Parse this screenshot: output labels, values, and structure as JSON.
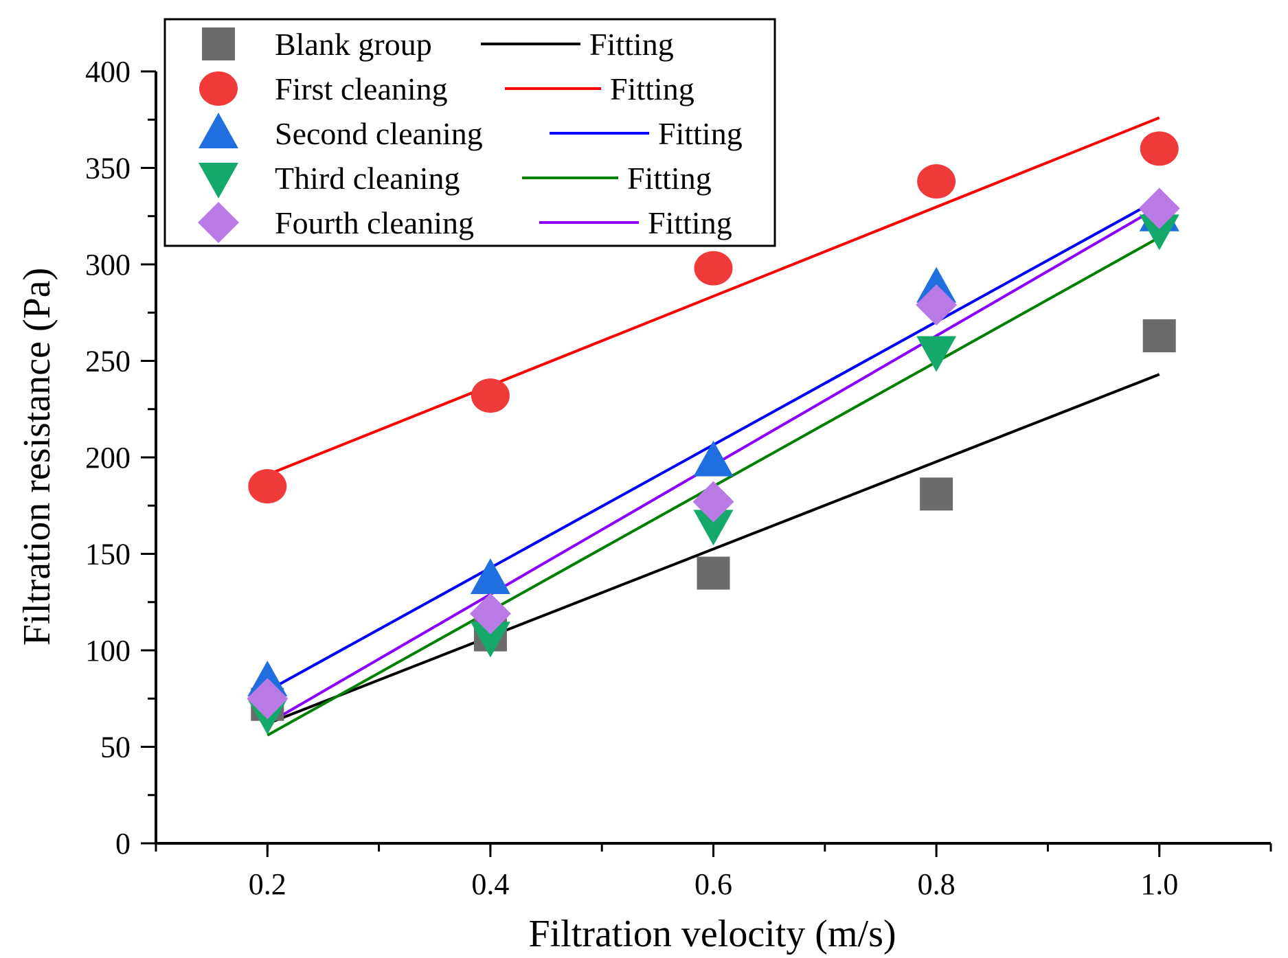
{
  "chart_data": {
    "type": "scatter",
    "title": "",
    "xlabel": "Filtration velocity (m/s)",
    "ylabel": "Filtration resistance (Pa)",
    "xlim": [
      0.1,
      1.1
    ],
    "ylim": [
      0,
      400
    ],
    "x_ticks": [
      0.2,
      0.4,
      0.6,
      0.8,
      1.0
    ],
    "x_tick_labels": [
      "0.2",
      "0.4",
      "0.6",
      "0.8",
      "1.0"
    ],
    "y_ticks": [
      0,
      50,
      100,
      150,
      200,
      250,
      300,
      350,
      400
    ],
    "y_tick_labels": [
      "0",
      "50",
      "100",
      "150",
      "200",
      "250",
      "300",
      "350",
      "400"
    ],
    "grid": false,
    "legend_position": "top-left",
    "fit_label": "Fitting",
    "series": [
      {
        "name": "Blank group",
        "marker": "square",
        "color": "#6b6b6b",
        "line_color": "#000000",
        "x": [
          0.2,
          0.4,
          0.6,
          0.8,
          1.0
        ],
        "values": [
          72,
          108,
          140,
          181,
          263
        ],
        "fit": [
          [
            0.2,
            62
          ],
          [
            1.0,
            243
          ]
        ]
      },
      {
        "name": "First cleaning",
        "marker": "circle",
        "color": "#f03a3a",
        "line_color": "#ff0000",
        "x": [
          0.2,
          0.4,
          0.6,
          0.8,
          1.0
        ],
        "values": [
          185,
          232,
          298,
          343,
          360
        ],
        "fit": [
          [
            0.2,
            191
          ],
          [
            1.0,
            376
          ]
        ]
      },
      {
        "name": "Second cleaning",
        "marker": "triangle-up",
        "color": "#1f6fe0",
        "line_color": "#0000ff",
        "x": [
          0.2,
          0.4,
          0.6,
          0.8,
          1.0
        ],
        "values": [
          84,
          137,
          198,
          288,
          325
        ],
        "fit": [
          [
            0.2,
            79
          ],
          [
            1.0,
            334
          ]
        ]
      },
      {
        "name": "Third cleaning",
        "marker": "triangle-down",
        "color": "#14a86a",
        "line_color": "#008000",
        "x": [
          0.2,
          0.4,
          0.6,
          0.8,
          1.0
        ],
        "values": [
          67,
          107,
          165,
          255,
          318
        ],
        "fit": [
          [
            0.2,
            56
          ],
          [
            1.0,
            314
          ]
        ]
      },
      {
        "name": "Fourth cleaning",
        "marker": "diamond",
        "color": "#b97ae6",
        "line_color": "#8b00ff",
        "x": [
          0.2,
          0.4,
          0.6,
          0.8,
          1.0
        ],
        "values": [
          75,
          119,
          177,
          279,
          329
        ],
        "fit": [
          [
            0.2,
            62
          ],
          [
            1.0,
            330
          ]
        ]
      }
    ]
  }
}
